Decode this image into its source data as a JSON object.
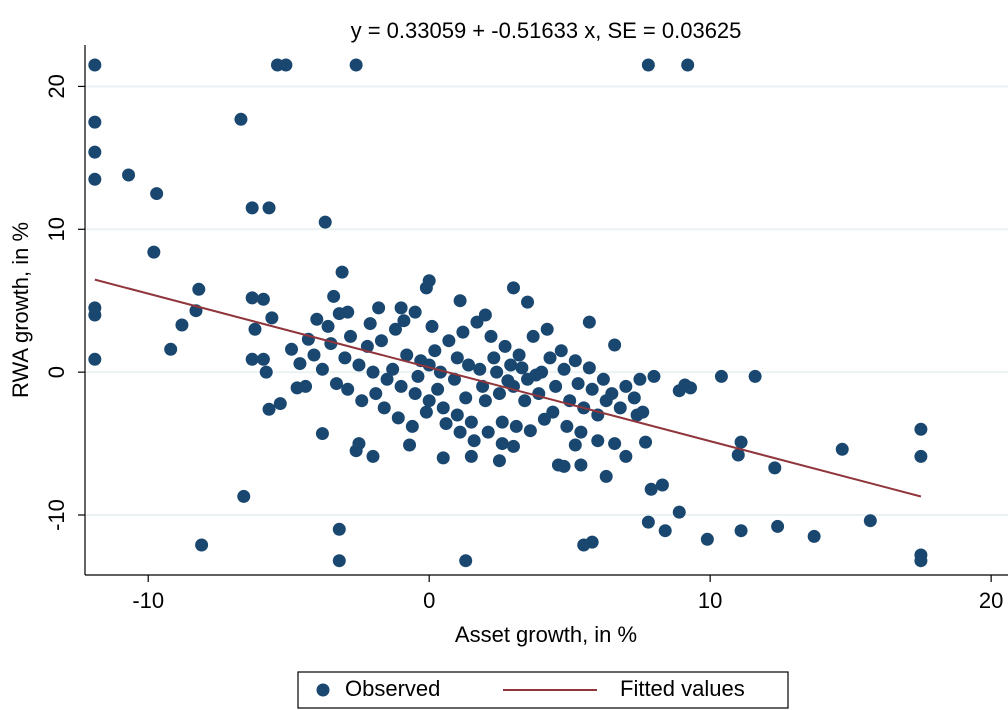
{
  "chart_data": {
    "type": "scatter",
    "title": "y =   0.33059 +  -0.51633 x, SE =   0.03625",
    "x_label": "Asset growth, in %",
    "y_label": "RWA growth, in %",
    "xlim": [
      -12.25,
      20.6
    ],
    "ylim": [
      -14.2,
      22.9
    ],
    "xticks": [
      -10,
      0,
      10,
      20
    ],
    "yticks": [
      -10,
      0,
      10,
      20
    ],
    "grid": true,
    "legend": "bottom",
    "series": [
      {
        "name": "Observed",
        "type": "scatter",
        "color": "#1a476f",
        "x": [
          -11.9,
          -5.4,
          -5.1,
          -2.6,
          7.8,
          9.2,
          -11.9,
          -11.9,
          -11.9,
          -6.7,
          -10.7,
          -9.7,
          -6.3,
          -5.7,
          -3.7,
          -9.8,
          -11.9,
          -11.9,
          -11.9,
          -8.2,
          -8.3,
          -8.8,
          -9.2,
          -6.6,
          -8.1,
          -3.2,
          -3.2,
          1.3,
          5.5,
          5.8,
          7.8,
          8.4,
          8.9,
          9.9,
          11.1,
          12.4,
          13.7,
          15.7,
          17.5,
          17.5,
          17.5,
          17.5,
          14.7,
          12.3,
          11.0,
          11.1,
          11.6,
          10.4,
          9.3,
          8.9,
          9.1,
          7.9,
          8.3,
          7.7,
          7.4,
          7.0,
          6.3,
          5.4,
          4.8,
          4.6,
          5.2,
          6.0,
          6.6,
          -6.3,
          -5.9,
          -3.4,
          -3.1,
          -2.9,
          -3.2,
          -1.8,
          -1.0,
          -0.5,
          0,
          -0.1,
          1.1,
          3.0,
          2.0,
          3.5,
          5.7,
          6.6,
          -3.8,
          -2.5,
          -2.6,
          -2.0,
          -0.7,
          0.5,
          1.5,
          2.5,
          2.6,
          3.0,
          -5.7,
          -5.3,
          -4.4,
          -4.7,
          -5.8,
          -5.9,
          -6.3,
          -6.2,
          -5.6,
          -4.9,
          -4.0,
          -4.3,
          -3,
          -2.5,
          -2,
          -1.5,
          -1,
          -0.5,
          0,
          0.5,
          1,
          1.5,
          2,
          2.5,
          3,
          3.5,
          4,
          4.5,
          5,
          5.5,
          6,
          6.5,
          7,
          7.5,
          8,
          -3.5,
          -2.8,
          -2.2,
          -1.7,
          -1.2,
          -0.8,
          -0.3,
          0.2,
          0.7,
          1.2,
          1.7,
          2.2,
          2.7,
          3.2,
          3.7,
          4.2,
          4.7,
          5.2,
          5.7,
          6.2,
          0.4,
          0.9,
          1.4,
          1.9,
          2.4,
          2.9,
          3.4,
          3.9,
          4.4,
          4.9,
          5.4,
          -1.6,
          -1.1,
          -0.6,
          -0.1,
          0.6,
          1.1,
          1.6,
          2.1,
          2.6,
          3.1,
          3.6,
          4.1,
          -2.9,
          -2.4,
          -1.9,
          -3.8,
          -3.3,
          -4.1,
          -4.6,
          -3.6,
          -2.1,
          -0.9,
          0.1,
          1.0,
          1.8,
          2.3,
          2.8,
          3.3,
          3.8,
          4.3,
          4.8,
          5.3,
          5.8,
          6.3,
          6.8,
          7.3,
          7.6,
          0.0,
          -0.4,
          0.3,
          1.3,
          -1.3
        ],
        "values": [
          21.5,
          21.5,
          21.5,
          21.5,
          21.5,
          21.5,
          17.5,
          15.4,
          13.5,
          17.7,
          13.8,
          12.5,
          11.5,
          11.5,
          10.5,
          8.4,
          4.5,
          4.0,
          0.9,
          5.8,
          4.3,
          3.3,
          1.6,
          -8.7,
          -12.1,
          -11.0,
          -13.2,
          -13.2,
          -12.1,
          -11.9,
          -10.5,
          -11.1,
          -9.8,
          -11.7,
          -11.1,
          -10.8,
          -11.5,
          -10.4,
          -12.8,
          -13.2,
          -4.0,
          -5.9,
          -5.4,
          -6.7,
          -5.8,
          -4.9,
          -0.3,
          -0.3,
          -1.1,
          -1.3,
          -0.9,
          -8.2,
          -7.9,
          -4.9,
          -3.0,
          -5.9,
          -7.3,
          -6.5,
          -6.6,
          -6.5,
          -5.1,
          -4.8,
          -5.0,
          5.2,
          5.1,
          5.3,
          7.0,
          4.2,
          4.1,
          4.5,
          4.5,
          4.2,
          6.4,
          5.9,
          5.0,
          5.9,
          4.0,
          4.9,
          3.5,
          1.9,
          -4.3,
          -5.0,
          -5.5,
          -5.9,
          -5.1,
          -6.0,
          -5.9,
          -6.2,
          -5.0,
          -5.2,
          -2.6,
          -2.2,
          -1.0,
          -1.1,
          0.0,
          0.9,
          0.9,
          3.0,
          3.8,
          1.6,
          3.7,
          2.3,
          1,
          0.5,
          0,
          -0.5,
          -1,
          -1.5,
          -2,
          -2.5,
          -3,
          -3.5,
          -2,
          -1.5,
          -1,
          -0.5,
          0,
          -1,
          -2,
          -2.5,
          -3,
          -1.5,
          -1,
          -0.5,
          -0.3,
          2,
          2.5,
          1.8,
          2.2,
          3,
          1.2,
          0.8,
          1.5,
          2.2,
          2.8,
          3.5,
          2.5,
          1.8,
          1.2,
          2.5,
          3,
          1.5,
          0.8,
          0.3,
          -0.5,
          0,
          -0.5,
          0.5,
          -1,
          0,
          0.5,
          -2,
          -1.5,
          -2.8,
          -3.8,
          -4.2,
          -2.5,
          -3.2,
          -3.8,
          -2.8,
          -3.6,
          -4.2,
          -4.8,
          -4.2,
          -3.5,
          -3.8,
          -4.1,
          -3.3,
          -1.2,
          -2,
          -1.5,
          0.2,
          -0.8,
          1.2,
          0.6,
          3.2,
          3.4,
          3.6,
          3.2,
          1.0,
          0.2,
          1.0,
          -0.6,
          0.3,
          -0.2,
          1.0,
          0.2,
          -0.8,
          -1.2,
          -2.0,
          -2.5,
          -1.8,
          -2.8,
          0.5,
          -0.3,
          -1.2,
          -1.8,
          0.2
        ]
      },
      {
        "name": "Fitted values",
        "type": "line",
        "color": "#90353b",
        "x": [
          -11.9,
          17.5
        ],
        "values": [
          6.475,
          -8.705
        ]
      }
    ]
  }
}
